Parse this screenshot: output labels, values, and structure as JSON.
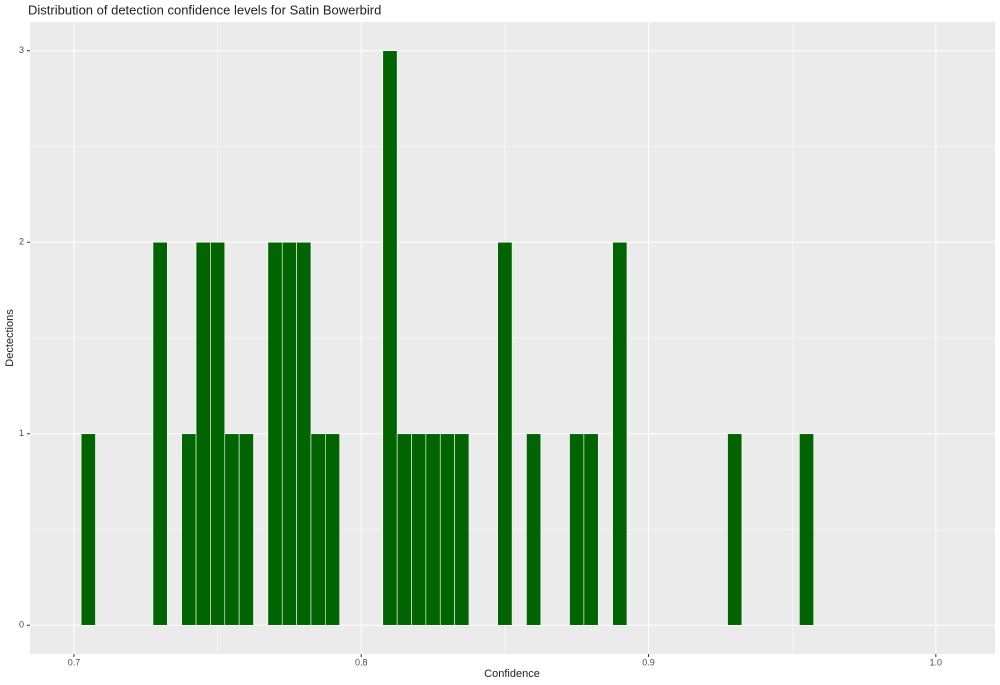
{
  "chart_data": {
    "type": "histogram",
    "title": "Distribution of detection confidence levels for Satin Bowerbird",
    "x_label": "Confidence",
    "y_label": "Dectections",
    "bins": [
      0.7025,
      0.7075,
      0.7125,
      0.7175,
      0.7225,
      0.7275,
      0.7325,
      0.7375,
      0.7425,
      0.7475,
      0.7525,
      0.7575,
      0.7625,
      0.7675,
      0.7725,
      0.7775,
      0.7825,
      0.7875,
      0.7925,
      0.7975,
      0.8025,
      0.8075,
      0.8125,
      0.8175,
      0.8225,
      0.8275,
      0.8325,
      0.8375,
      0.8425,
      0.8475,
      0.8525,
      0.8575,
      0.8625,
      0.8675,
      0.8725,
      0.8775,
      0.8825,
      0.8875,
      0.8925,
      0.8975,
      0.9025,
      0.9075,
      0.9125,
      0.9175,
      0.9225,
      0.9275,
      0.9325,
      0.9375,
      0.9425,
      0.9475,
      0.9525,
      0.9575
    ],
    "values": [
      1,
      0,
      0,
      0,
      0,
      2,
      0,
      1,
      2,
      2,
      1,
      1,
      0,
      2,
      2,
      2,
      1,
      1,
      0,
      0,
      0,
      3,
      1,
      1,
      1,
      1,
      1,
      0,
      0,
      2,
      0,
      1,
      0,
      0,
      1,
      1,
      0,
      2,
      0,
      0,
      0,
      0,
      0,
      0,
      0,
      1,
      0,
      0,
      0,
      0,
      1
    ],
    "color": "#006400",
    "xlim": [
      0.6847,
      1.0206
    ],
    "xticks": [
      0.7,
      0.8,
      0.9,
      {
        "value": 1,
        "label": "1.0"
      }
    ],
    "ylim": [
      -0.15,
      3.15
    ],
    "yticks": [
      0,
      1,
      2,
      3
    ],
    "grid": true
  }
}
